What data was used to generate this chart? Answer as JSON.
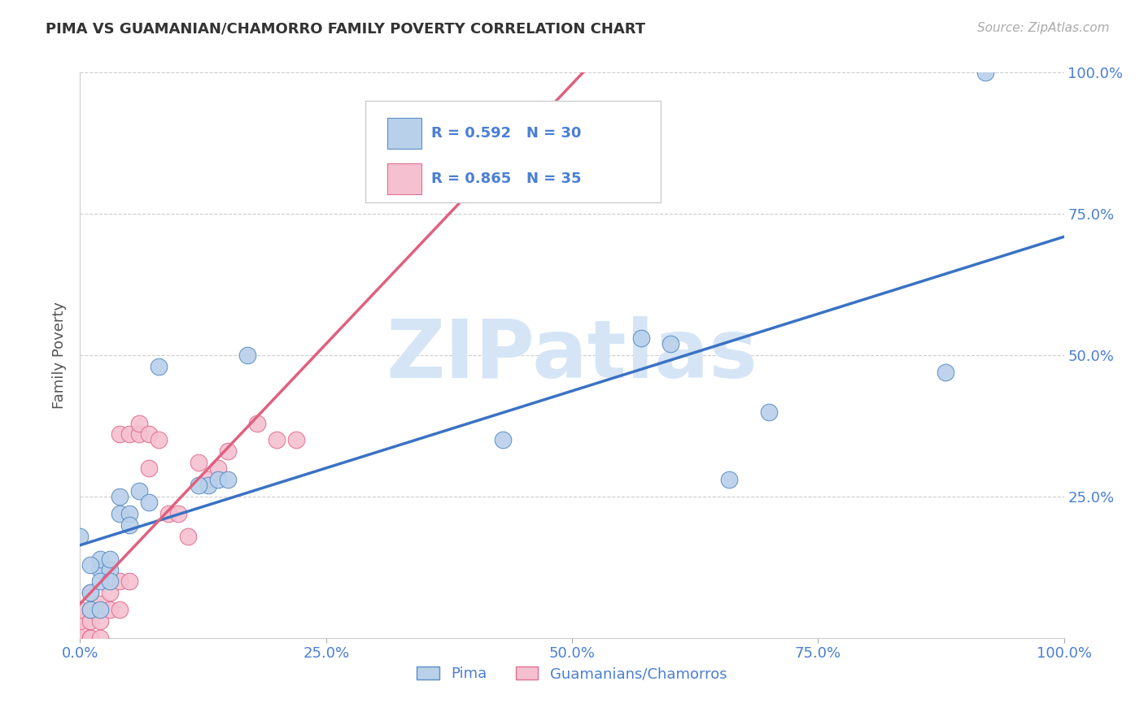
{
  "title": "PIMA VS GUAMANIAN/CHAMORRO FAMILY POVERTY CORRELATION CHART",
  "source": "Source: ZipAtlas.com",
  "ylabel": "Family Poverty",
  "xlim": [
    0,
    1.0
  ],
  "ylim": [
    0,
    1.0
  ],
  "xticks": [
    0.0,
    0.25,
    0.5,
    0.75,
    1.0
  ],
  "xticklabels": [
    "0.0%",
    "25.0%",
    "50.0%",
    "75.0%",
    "100.0%"
  ],
  "yticks": [
    0.0,
    0.25,
    0.5,
    0.75,
    1.0
  ],
  "yticklabels_right": [
    "",
    "25.0%",
    "50.0%",
    "75.0%",
    "100.0%"
  ],
  "pima_R": 0.592,
  "pima_N": 30,
  "guam_R": 0.865,
  "guam_N": 35,
  "pima_color": "#b8d0ea",
  "pima_edge_color": "#5b8ec4",
  "pima_line_color": "#3a72c4",
  "guam_color": "#f5c0d0",
  "guam_edge_color": "#e07090",
  "guam_line_color": "#e06080",
  "tick_label_color": "#4a7fd4",
  "ylabel_color": "#555555",
  "background_color": "#ffffff",
  "watermark": "ZIPatlas",
  "watermark_color": "#d5e5f5",
  "grid_color": "#cccccc",
  "legend_edge_color": "#cccccc",
  "pima_x": [
    0.0,
    0.01,
    0.01,
    0.02,
    0.02,
    0.02,
    0.03,
    0.03,
    0.04,
    0.04,
    0.05,
    0.06,
    0.07,
    0.08,
    0.13,
    0.14,
    0.15,
    0.17,
    0.43,
    0.57,
    0.6,
    0.66,
    0.7,
    0.88,
    0.92,
    0.02,
    0.03,
    0.05,
    0.12,
    0.01
  ],
  "pima_y": [
    0.18,
    0.05,
    0.08,
    0.05,
    0.12,
    0.14,
    0.12,
    0.14,
    0.25,
    0.22,
    0.22,
    0.26,
    0.24,
    0.48,
    0.27,
    0.28,
    0.28,
    0.5,
    0.35,
    0.53,
    0.52,
    0.28,
    0.4,
    0.47,
    1.0,
    0.1,
    0.1,
    0.2,
    0.27,
    0.13
  ],
  "guam_x": [
    0.0,
    0.0,
    0.0,
    0.0,
    0.0,
    0.01,
    0.01,
    0.01,
    0.01,
    0.01,
    0.02,
    0.02,
    0.02,
    0.03,
    0.03,
    0.04,
    0.04,
    0.04,
    0.05,
    0.05,
    0.06,
    0.06,
    0.07,
    0.07,
    0.08,
    0.09,
    0.1,
    0.11,
    0.12,
    0.13,
    0.14,
    0.15,
    0.18,
    0.2,
    0.22
  ],
  "guam_y": [
    0.0,
    0.0,
    0.01,
    0.03,
    0.05,
    0.0,
    0.0,
    0.03,
    0.05,
    0.08,
    0.0,
    0.03,
    0.06,
    0.05,
    0.08,
    0.05,
    0.1,
    0.36,
    0.1,
    0.36,
    0.36,
    0.38,
    0.3,
    0.36,
    0.35,
    0.22,
    0.22,
    0.18,
    0.31,
    0.28,
    0.3,
    0.33,
    0.38,
    0.35,
    0.35
  ]
}
